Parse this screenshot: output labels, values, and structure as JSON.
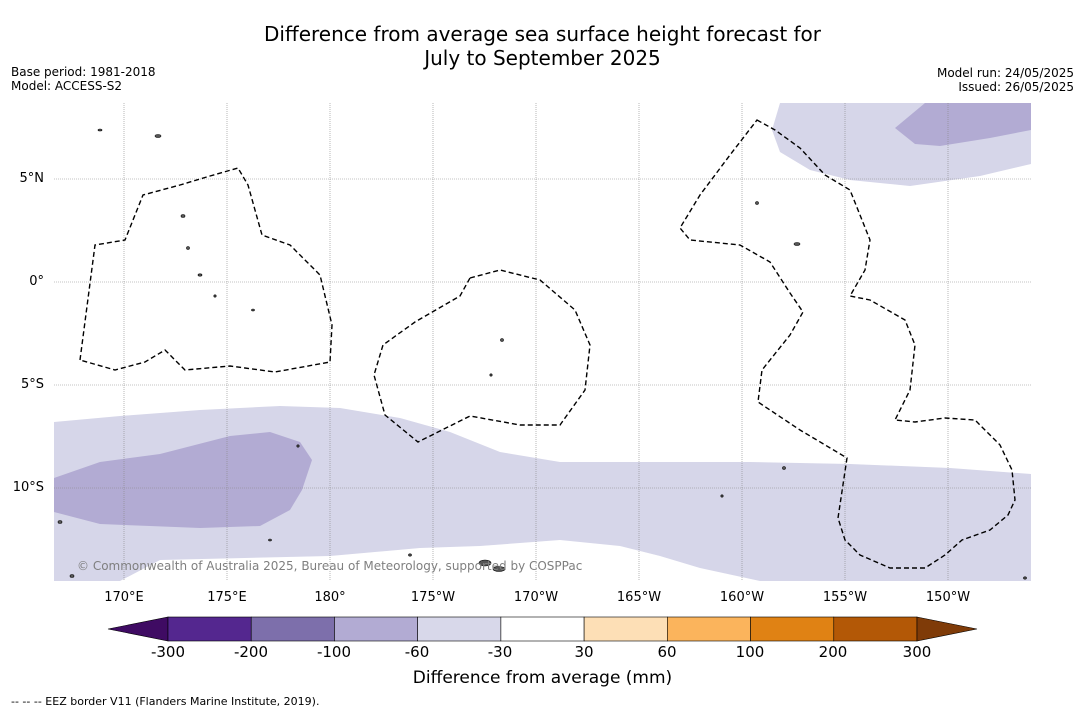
{
  "title": {
    "line1": "Difference from average sea surface height forecast for",
    "line2": "July to September 2025"
  },
  "meta_left": {
    "base_period": "Base period: 1981-2018",
    "model": "Model: ACCESS-S2"
  },
  "meta_right": {
    "model_run": "Model run: 24/05/2025",
    "issued": "Issued: 26/05/2025"
  },
  "map": {
    "lat_labels": [
      "5°N",
      "0°",
      "5°S",
      "10°S"
    ],
    "lon_labels": [
      "170°E",
      "175°E",
      "180°",
      "175°W",
      "170°W",
      "165°W",
      "160°W",
      "155°W",
      "150°W"
    ],
    "copyright": "© Commonwealth of Australia 2025, Bureau of Meteorology, supported by COSPPac",
    "colors": {
      "light_purple": "#d6d6e9",
      "mid_purple": "#b2abd3",
      "land": "#555555",
      "eez_border": "#000000",
      "grid": "#888888"
    }
  },
  "colorbar": {
    "labels": [
      "-300",
      "-200",
      "-100",
      "-60",
      "-30",
      "30",
      "60",
      "100",
      "200",
      "300"
    ],
    "colors": [
      "#3f0b63",
      "#54278f",
      "#7d6fab",
      "#b2abd3",
      "#d8d8ea",
      "#ffffff",
      "#fddfb6",
      "#fbb45c",
      "#e08214",
      "#b35806",
      "#7f3b08"
    ],
    "title": "Difference from average (mm)"
  },
  "footnote": "--  --  -- EEZ border V11 (Flanders Marine Institute, 2019)."
}
